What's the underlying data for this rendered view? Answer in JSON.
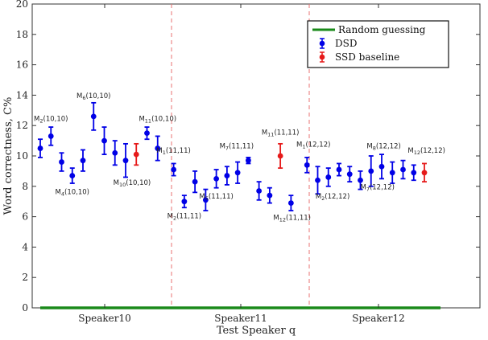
{
  "chart_data": {
    "type": "scatter",
    "xlabel": "Test Speaker q",
    "ylabel": "Word correctness, C%",
    "ylim": [
      0,
      20
    ],
    "yticks": [
      0,
      2,
      4,
      6,
      8,
      10,
      12,
      14,
      16,
      18,
      20
    ],
    "groups": [
      "Speaker10",
      "Speaker11",
      "Speaker12"
    ],
    "grid": false,
    "legend_position": "top-right",
    "legend": [
      {
        "name": "Random guessing",
        "color": "#1a8a1a",
        "style": "line"
      },
      {
        "name": "DSD",
        "color": "#0000e6",
        "style": "errorbar"
      },
      {
        "name": "SSD baseline",
        "color": "#e61a1a",
        "style": "errorbar"
      }
    ],
    "random_guessing_value": 0,
    "series": [
      {
        "name": "DSD",
        "color": "#0000e6",
        "points": [
          {
            "x": 1,
            "y": 10.5,
            "err": 0.6
          },
          {
            "x": 2,
            "y": 11.3,
            "err": 0.6
          },
          {
            "x": 3,
            "y": 9.6,
            "err": 0.6
          },
          {
            "x": 4,
            "y": 8.7,
            "err": 0.5
          },
          {
            "x": 5,
            "y": 9.7,
            "err": 0.7
          },
          {
            "x": 6,
            "y": 12.6,
            "err": 0.9
          },
          {
            "x": 7,
            "y": 11.0,
            "err": 0.9
          },
          {
            "x": 8,
            "y": 10.2,
            "err": 0.8
          },
          {
            "x": 9,
            "y": 9.7,
            "err": 1.1
          },
          {
            "x": 11,
            "y": 11.5,
            "err": 0.4
          },
          {
            "x": 12,
            "y": 10.5,
            "err": 0.8
          },
          {
            "x": 13.5,
            "y": 9.1,
            "err": 0.4
          },
          {
            "x": 14.5,
            "y": 7.0,
            "err": 0.4
          },
          {
            "x": 15.5,
            "y": 8.3,
            "err": 0.7
          },
          {
            "x": 16.5,
            "y": 7.1,
            "err": 0.7
          },
          {
            "x": 17.5,
            "y": 8.5,
            "err": 0.6
          },
          {
            "x": 18.5,
            "y": 8.7,
            "err": 0.6
          },
          {
            "x": 19.5,
            "y": 8.9,
            "err": 0.7
          },
          {
            "x": 20.5,
            "y": 9.7,
            "err": 0.2
          },
          {
            "x": 21.5,
            "y": 7.7,
            "err": 0.6
          },
          {
            "x": 22.5,
            "y": 7.4,
            "err": 0.5
          },
          {
            "x": 24.5,
            "y": 6.9,
            "err": 0.5
          },
          {
            "x": 26,
            "y": 9.4,
            "err": 0.5
          },
          {
            "x": 27,
            "y": 8.4,
            "err": 0.9
          },
          {
            "x": 28,
            "y": 8.6,
            "err": 0.6
          },
          {
            "x": 29,
            "y": 9.1,
            "err": 0.4
          },
          {
            "x": 30,
            "y": 8.8,
            "err": 0.5
          },
          {
            "x": 31,
            "y": 8.4,
            "err": 0.6
          },
          {
            "x": 32,
            "y": 9.0,
            "err": 1.0
          },
          {
            "x": 33,
            "y": 9.3,
            "err": 0.8
          },
          {
            "x": 34,
            "y": 8.9,
            "err": 0.7
          },
          {
            "x": 35,
            "y": 9.1,
            "err": 0.6
          },
          {
            "x": 36,
            "y": 8.9,
            "err": 0.5
          }
        ]
      },
      {
        "name": "SSD baseline",
        "color": "#e61a1a",
        "points": [
          {
            "x": 10,
            "y": 10.1,
            "err": 0.7
          },
          {
            "x": 23.5,
            "y": 10.0,
            "err": 0.8
          },
          {
            "x": 37,
            "y": 8.9,
            "err": 0.6
          }
        ]
      }
    ],
    "annotations": [
      {
        "base": "M",
        "sub": "2",
        "paren": "(10,10)",
        "x": 2,
        "y": 12.3
      },
      {
        "base": "M",
        "sub": "4",
        "paren": "(10,10)",
        "x": 4,
        "y": 7.5
      },
      {
        "base": "M",
        "sub": "6",
        "paren": "(10,10)",
        "x": 6,
        "y": 13.8
      },
      {
        "base": "M",
        "sub": "10",
        "paren": "(10,10)",
        "x": 9.6,
        "y": 8.1
      },
      {
        "base": "M",
        "sub": "11",
        "paren": "(10,10)",
        "x": 12,
        "y": 12.3
      },
      {
        "base": "M",
        "sub": "1",
        "paren": "(11,11)",
        "x": 13.5,
        "y": 10.2
      },
      {
        "base": "M",
        "sub": "2",
        "paren": "(11,11)",
        "x": 14.5,
        "y": 5.9
      },
      {
        "base": "M",
        "sub": "5",
        "paren": "(11,11)",
        "x": 17.5,
        "y": 7.2
      },
      {
        "base": "M",
        "sub": "7",
        "paren": "(11,11)",
        "x": 19.4,
        "y": 10.5
      },
      {
        "base": "M",
        "sub": "11",
        "paren": "(11,11)",
        "x": 23.5,
        "y": 11.4
      },
      {
        "base": "M",
        "sub": "12",
        "paren": "(11,11)",
        "x": 24.6,
        "y": 5.8
      },
      {
        "base": "M",
        "sub": "1",
        "paren": "(12,12)",
        "x": 26.6,
        "y": 10.6
      },
      {
        "base": "M",
        "sub": "2",
        "paren": "(12,12)",
        "x": 28.4,
        "y": 7.2
      },
      {
        "base": "M",
        "sub": "7",
        "paren": "(12,12)",
        "x": 32.6,
        "y": 7.8
      },
      {
        "base": "M",
        "sub": "8",
        "paren": "(12,12)",
        "x": 33.2,
        "y": 10.5
      },
      {
        "base": "M",
        "sub": "12",
        "paren": "(12,12)",
        "x": 37.2,
        "y": 10.2
      }
    ]
  }
}
